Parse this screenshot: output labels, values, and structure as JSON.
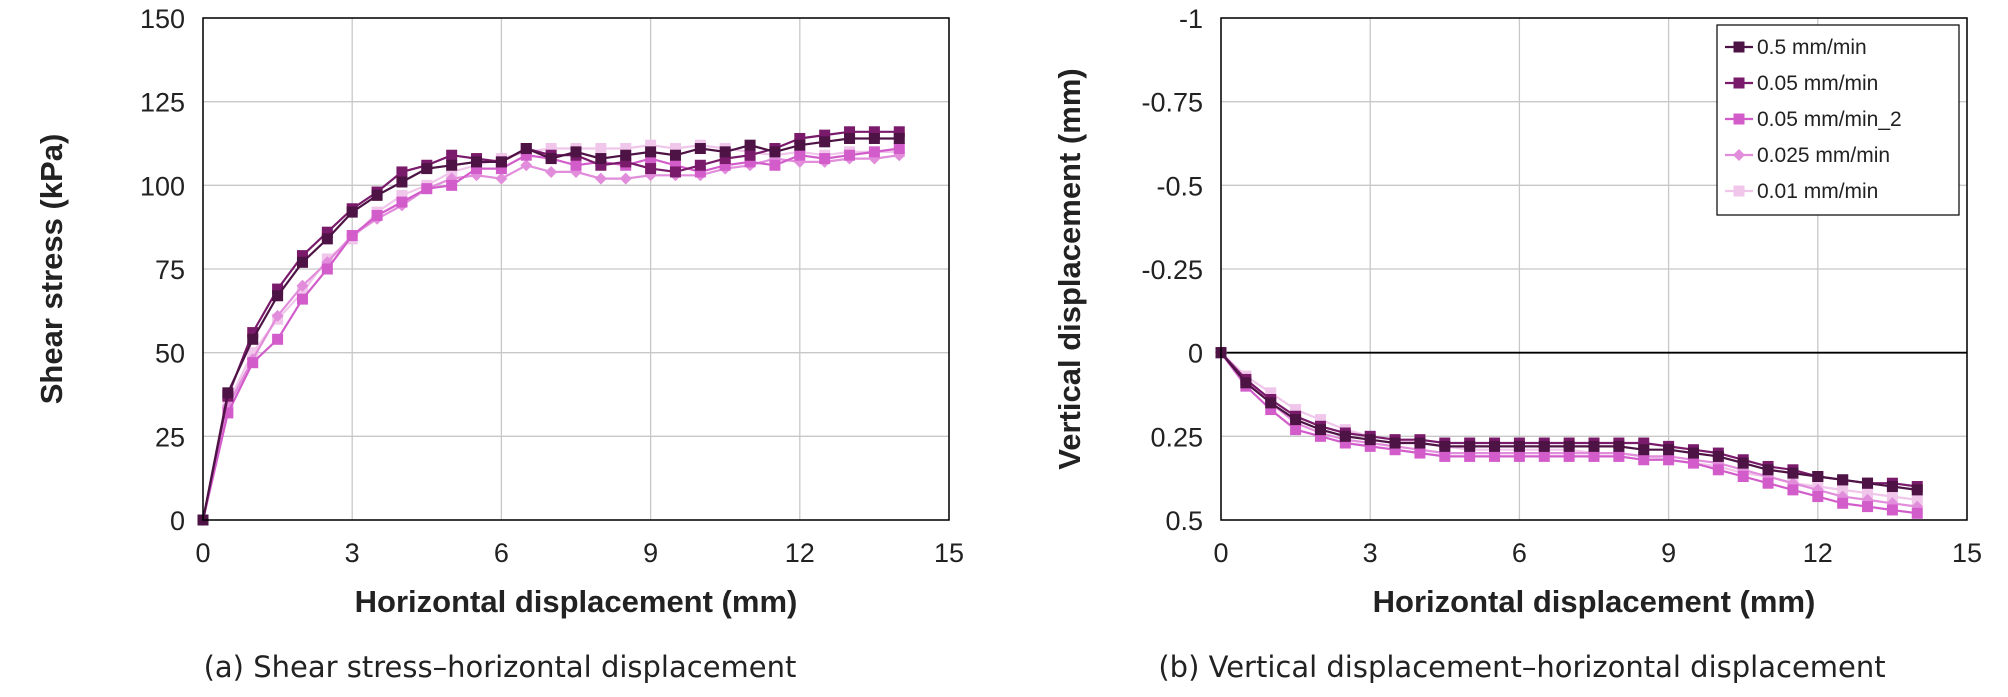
{
  "chart_data": [
    {
      "type": "line",
      "caption": "(a) Shear stress–horizontal displacement",
      "xlabel": "Horizontal displacement (mm)",
      "ylabel": "Shear stress (kPa)",
      "xlim": [
        0,
        15
      ],
      "ylim": [
        0,
        150
      ],
      "xticks": [
        "0",
        "3",
        "6",
        "9",
        "12",
        "15"
      ],
      "yticks": [
        "0",
        "25",
        "50",
        "75",
        "100",
        "125",
        "150"
      ],
      "grid": true,
      "legend": "none",
      "x": [
        0,
        0.5,
        1,
        1.5,
        2,
        2.5,
        3,
        3.5,
        4,
        4.5,
        5,
        5.5,
        6,
        6.5,
        7,
        7.5,
        8,
        8.5,
        9,
        9.5,
        10,
        10.5,
        11,
        11.5,
        12,
        12.5,
        13,
        13.5,
        14
      ],
      "series": [
        {
          "name": "0.5 mm/min",
          "color": "#4d1344",
          "marker": "square",
          "values": [
            0,
            38,
            54,
            67,
            77,
            84,
            92,
            97,
            101,
            105,
            106,
            107,
            107,
            111,
            108,
            110,
            108,
            109,
            110,
            109,
            111,
            110,
            112,
            110,
            112,
            113,
            114,
            114,
            114
          ]
        },
        {
          "name": "0.05 mm/min",
          "color": "#7a1a6a",
          "marker": "square",
          "values": [
            0,
            37,
            56,
            69,
            79,
            86,
            93,
            98,
            104,
            106,
            109,
            108,
            107,
            111,
            109,
            109,
            106,
            107,
            105,
            104,
            106,
            108,
            109,
            111,
            114,
            115,
            116,
            116,
            116
          ]
        },
        {
          "name": "0.05 mm/min_2",
          "color": "#d35ccb",
          "marker": "square",
          "values": [
            0,
            32,
            47,
            54,
            66,
            75,
            85,
            91,
            95,
            99,
            100,
            105,
            105,
            109,
            108,
            106,
            107,
            106,
            108,
            106,
            104,
            106,
            107,
            106,
            109,
            108,
            109,
            110,
            111
          ]
        },
        {
          "name": "0.025 mm/min",
          "color": "#e28ddb",
          "marker": "diamond",
          "values": [
            0,
            34,
            48,
            61,
            70,
            77,
            85,
            90,
            94,
            99,
            102,
            103,
            102,
            106,
            104,
            104,
            102,
            102,
            103,
            103,
            103,
            105,
            106,
            108,
            107,
            107,
            108,
            108,
            109
          ]
        },
        {
          "name": "0.01 mm/min",
          "color": "#f0c6ea",
          "marker": "square",
          "values": [
            0,
            35,
            50,
            60,
            68,
            78,
            84,
            92,
            97,
            100,
            104,
            106,
            108,
            110,
            111,
            111,
            111,
            111,
            112,
            111,
            112,
            111,
            110,
            109,
            110,
            109,
            110,
            110,
            110
          ]
        }
      ]
    },
    {
      "type": "line",
      "caption": "(b) Vertical displacement–horizontal displacement",
      "xlabel": "Horizontal displacement (mm)",
      "ylabel": "Vertical displacement (mm)",
      "xlim": [
        0,
        15
      ],
      "ylim": [
        0.5,
        -1
      ],
      "y_inverted": true,
      "xticks": [
        "0",
        "3",
        "6",
        "9",
        "12",
        "15"
      ],
      "yticks": [
        "-1",
        "-0.75",
        "-0.5",
        "-0.25",
        "0",
        "0.25",
        "0.5"
      ],
      "grid": true,
      "legend": "top-right",
      "x": [
        0,
        0.5,
        1,
        1.5,
        2,
        2.5,
        3,
        3.5,
        4,
        4.5,
        5,
        5.5,
        6,
        6.5,
        7,
        7.5,
        8,
        8.5,
        9,
        9.5,
        10,
        10.5,
        11,
        11.5,
        12,
        12.5,
        13,
        13.5,
        14
      ],
      "series": [
        {
          "name": "0.5 mm/min",
          "color": "#4d1344",
          "marker": "square",
          "values": [
            0,
            0.09,
            0.15,
            0.2,
            0.23,
            0.25,
            0.26,
            0.27,
            0.27,
            0.28,
            0.28,
            0.28,
            0.28,
            0.28,
            0.28,
            0.28,
            0.28,
            0.29,
            0.29,
            0.3,
            0.31,
            0.33,
            0.35,
            0.36,
            0.37,
            0.38,
            0.39,
            0.4,
            0.41
          ]
        },
        {
          "name": "0.05 mm/min",
          "color": "#7a1a6a",
          "marker": "square",
          "values": [
            0,
            0.08,
            0.14,
            0.19,
            0.22,
            0.24,
            0.25,
            0.26,
            0.26,
            0.27,
            0.27,
            0.27,
            0.27,
            0.27,
            0.27,
            0.27,
            0.27,
            0.27,
            0.28,
            0.29,
            0.3,
            0.32,
            0.34,
            0.35,
            0.37,
            0.38,
            0.39,
            0.39,
            0.4
          ]
        },
        {
          "name": "0.05 mm/min_2",
          "color": "#d35ccb",
          "marker": "square",
          "values": [
            0,
            0.1,
            0.17,
            0.23,
            0.25,
            0.27,
            0.28,
            0.29,
            0.3,
            0.31,
            0.31,
            0.31,
            0.31,
            0.31,
            0.31,
            0.31,
            0.31,
            0.32,
            0.32,
            0.33,
            0.35,
            0.37,
            0.39,
            0.41,
            0.43,
            0.45,
            0.46,
            0.47,
            0.48
          ]
        },
        {
          "name": "0.025 mm/min",
          "color": "#e28ddb",
          "marker": "diamond",
          "values": [
            0,
            0.08,
            0.15,
            0.21,
            0.24,
            0.26,
            0.27,
            0.28,
            0.29,
            0.3,
            0.3,
            0.3,
            0.3,
            0.3,
            0.3,
            0.3,
            0.3,
            0.31,
            0.31,
            0.32,
            0.33,
            0.35,
            0.37,
            0.39,
            0.41,
            0.43,
            0.44,
            0.45,
            0.46
          ]
        },
        {
          "name": "0.01 mm/min",
          "color": "#f0c6ea",
          "marker": "square",
          "values": [
            0,
            0.07,
            0.12,
            0.17,
            0.2,
            0.23,
            0.25,
            0.26,
            0.27,
            0.28,
            0.29,
            0.29,
            0.29,
            0.29,
            0.29,
            0.3,
            0.3,
            0.31,
            0.32,
            0.33,
            0.34,
            0.36,
            0.37,
            0.39,
            0.4,
            0.41,
            0.42,
            0.43,
            0.44
          ]
        }
      ]
    }
  ]
}
